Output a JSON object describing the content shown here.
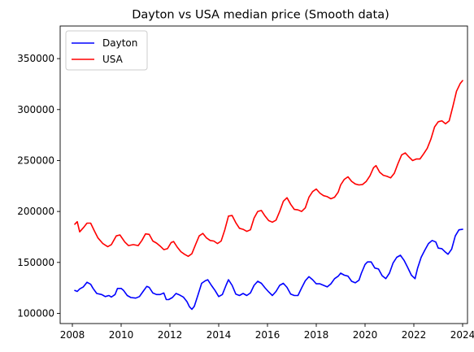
{
  "chart_data": {
    "type": "line",
    "title": "Dayton vs USA median price (Smooth data)",
    "xlabel": "",
    "ylabel": "",
    "xlim": [
      2007.5,
      2024.2
    ],
    "ylim": [
      90000,
      382000
    ],
    "x_ticks": [
      2008,
      2010,
      2012,
      2014,
      2016,
      2018,
      2020,
      2022,
      2024
    ],
    "x_tick_labels": [
      "2008",
      "2010",
      "2012",
      "2014",
      "2016",
      "2018",
      "2020",
      "2022",
      "2024"
    ],
    "y_ticks": [
      100000,
      150000,
      200000,
      250000,
      300000,
      350000
    ],
    "y_tick_labels": [
      "100000",
      "150000",
      "200000",
      "250000",
      "300000",
      "350000"
    ],
    "grid": false,
    "legend_position": "upper-left",
    "series": [
      {
        "name": "Dayton",
        "color": "#0000ff",
        "points": [
          [
            2008.1,
            122500
          ],
          [
            2008.2,
            121500
          ],
          [
            2008.3,
            124000
          ],
          [
            2008.45,
            126000
          ],
          [
            2008.6,
            130500
          ],
          [
            2008.75,
            128500
          ],
          [
            2008.85,
            124500
          ],
          [
            2009.0,
            119500
          ],
          [
            2009.2,
            118500
          ],
          [
            2009.35,
            116500
          ],
          [
            2009.5,
            117500
          ],
          [
            2009.6,
            116000
          ],
          [
            2009.75,
            118500
          ],
          [
            2009.85,
            124500
          ],
          [
            2010.0,
            124500
          ],
          [
            2010.1,
            122500
          ],
          [
            2010.25,
            117500
          ],
          [
            2010.4,
            115500
          ],
          [
            2010.6,
            115000
          ],
          [
            2010.75,
            116500
          ],
          [
            2010.9,
            121500
          ],
          [
            2011.05,
            126500
          ],
          [
            2011.15,
            125500
          ],
          [
            2011.3,
            120000
          ],
          [
            2011.45,
            118500
          ],
          [
            2011.6,
            118500
          ],
          [
            2011.75,
            120000
          ],
          [
            2011.85,
            113500
          ],
          [
            2011.95,
            113500
          ],
          [
            2012.1,
            115500
          ],
          [
            2012.25,
            119500
          ],
          [
            2012.4,
            118000
          ],
          [
            2012.55,
            116000
          ],
          [
            2012.7,
            111500
          ],
          [
            2012.8,
            106500
          ],
          [
            2012.9,
            104000
          ],
          [
            2013.0,
            107000
          ],
          [
            2013.15,
            118000
          ],
          [
            2013.3,
            129500
          ],
          [
            2013.45,
            132000
          ],
          [
            2013.55,
            133000
          ],
          [
            2013.7,
            127500
          ],
          [
            2013.85,
            122500
          ],
          [
            2014.0,
            116500
          ],
          [
            2014.15,
            118500
          ],
          [
            2014.3,
            127500
          ],
          [
            2014.4,
            133000
          ],
          [
            2014.55,
            127500
          ],
          [
            2014.7,
            119000
          ],
          [
            2014.85,
            117500
          ],
          [
            2015.0,
            119500
          ],
          [
            2015.15,
            117500
          ],
          [
            2015.3,
            120000
          ],
          [
            2015.45,
            127500
          ],
          [
            2015.6,
            131500
          ],
          [
            2015.75,
            129500
          ],
          [
            2015.9,
            125000
          ],
          [
            2016.05,
            121000
          ],
          [
            2016.2,
            117500
          ],
          [
            2016.35,
            121500
          ],
          [
            2016.5,
            127500
          ],
          [
            2016.65,
            129500
          ],
          [
            2016.8,
            125500
          ],
          [
            2016.95,
            119000
          ],
          [
            2017.1,
            117500
          ],
          [
            2017.25,
            117500
          ],
          [
            2017.4,
            125000
          ],
          [
            2017.55,
            132000
          ],
          [
            2017.7,
            136000
          ],
          [
            2017.85,
            133000
          ],
          [
            2018.0,
            129000
          ],
          [
            2018.15,
            129000
          ],
          [
            2018.3,
            127500
          ],
          [
            2018.45,
            126000
          ],
          [
            2018.6,
            129000
          ],
          [
            2018.75,
            134000
          ],
          [
            2018.9,
            136500
          ],
          [
            2019.0,
            139500
          ],
          [
            2019.15,
            137500
          ],
          [
            2019.3,
            136500
          ],
          [
            2019.45,
            131500
          ],
          [
            2019.6,
            130000
          ],
          [
            2019.75,
            132500
          ],
          [
            2019.85,
            139500
          ],
          [
            2020.0,
            148000
          ],
          [
            2020.1,
            150500
          ],
          [
            2020.25,
            150500
          ],
          [
            2020.4,
            144500
          ],
          [
            2020.55,
            143500
          ],
          [
            2020.7,
            137000
          ],
          [
            2020.85,
            134000
          ],
          [
            2021.0,
            139500
          ],
          [
            2021.15,
            149500
          ],
          [
            2021.3,
            155000
          ],
          [
            2021.45,
            157000
          ],
          [
            2021.6,
            152000
          ],
          [
            2021.75,
            145000
          ],
          [
            2021.9,
            137500
          ],
          [
            2022.05,
            134000
          ],
          [
            2022.15,
            144000
          ],
          [
            2022.3,
            155000
          ],
          [
            2022.45,
            162000
          ],
          [
            2022.6,
            168500
          ],
          [
            2022.75,
            171500
          ],
          [
            2022.9,
            170000
          ],
          [
            2023.0,
            164000
          ],
          [
            2023.15,
            163500
          ],
          [
            2023.3,
            160000
          ],
          [
            2023.4,
            158000
          ],
          [
            2023.55,
            163000
          ],
          [
            2023.7,
            176000
          ],
          [
            2023.85,
            182000
          ],
          [
            2024.0,
            182500
          ]
        ]
      },
      {
        "name": "USA",
        "color": "#ff0000",
        "points": [
          [
            2008.1,
            187500
          ],
          [
            2008.2,
            190000
          ],
          [
            2008.3,
            180000
          ],
          [
            2008.45,
            184000
          ],
          [
            2008.6,
            188500
          ],
          [
            2008.75,
            188500
          ],
          [
            2008.9,
            181000
          ],
          [
            2009.05,
            174000
          ],
          [
            2009.25,
            168500
          ],
          [
            2009.45,
            165500
          ],
          [
            2009.6,
            167500
          ],
          [
            2009.8,
            176000
          ],
          [
            2009.95,
            177000
          ],
          [
            2010.15,
            170000
          ],
          [
            2010.3,
            166500
          ],
          [
            2010.5,
            167500
          ],
          [
            2010.7,
            166500
          ],
          [
            2010.85,
            171500
          ],
          [
            2011.0,
            178000
          ],
          [
            2011.15,
            177500
          ],
          [
            2011.3,
            171000
          ],
          [
            2011.45,
            169000
          ],
          [
            2011.6,
            166000
          ],
          [
            2011.75,
            162500
          ],
          [
            2011.9,
            163500
          ],
          [
            2012.05,
            169500
          ],
          [
            2012.15,
            170500
          ],
          [
            2012.3,
            165000
          ],
          [
            2012.45,
            160500
          ],
          [
            2012.6,
            158000
          ],
          [
            2012.75,
            156000
          ],
          [
            2012.9,
            158500
          ],
          [
            2013.05,
            167500
          ],
          [
            2013.2,
            176000
          ],
          [
            2013.35,
            178500
          ],
          [
            2013.5,
            174000
          ],
          [
            2013.65,
            171500
          ],
          [
            2013.8,
            171000
          ],
          [
            2013.95,
            168500
          ],
          [
            2014.1,
            171000
          ],
          [
            2014.25,
            182000
          ],
          [
            2014.4,
            195500
          ],
          [
            2014.55,
            196000
          ],
          [
            2014.7,
            189000
          ],
          [
            2014.85,
            183500
          ],
          [
            2015.0,
            182500
          ],
          [
            2015.15,
            180500
          ],
          [
            2015.3,
            182000
          ],
          [
            2015.45,
            193500
          ],
          [
            2015.6,
            200000
          ],
          [
            2015.75,
            201000
          ],
          [
            2015.9,
            195500
          ],
          [
            2016.05,
            191000
          ],
          [
            2016.2,
            189500
          ],
          [
            2016.35,
            191500
          ],
          [
            2016.5,
            200000
          ],
          [
            2016.65,
            210000
          ],
          [
            2016.8,
            213500
          ],
          [
            2016.95,
            207000
          ],
          [
            2017.1,
            202000
          ],
          [
            2017.25,
            201500
          ],
          [
            2017.4,
            200000
          ],
          [
            2017.55,
            203500
          ],
          [
            2017.7,
            214000
          ],
          [
            2017.85,
            219500
          ],
          [
            2018.0,
            222000
          ],
          [
            2018.15,
            218000
          ],
          [
            2018.3,
            215500
          ],
          [
            2018.45,
            214500
          ],
          [
            2018.6,
            212500
          ],
          [
            2018.75,
            214000
          ],
          [
            2018.9,
            219000
          ],
          [
            2019.0,
            226000
          ],
          [
            2019.15,
            231500
          ],
          [
            2019.3,
            234000
          ],
          [
            2019.45,
            229500
          ],
          [
            2019.6,
            227000
          ],
          [
            2019.75,
            226000
          ],
          [
            2019.9,
            226500
          ],
          [
            2020.05,
            229500
          ],
          [
            2020.2,
            235000
          ],
          [
            2020.35,
            243000
          ],
          [
            2020.45,
            245000
          ],
          [
            2020.6,
            238500
          ],
          [
            2020.75,
            235500
          ],
          [
            2020.9,
            234500
          ],
          [
            2021.05,
            233000
          ],
          [
            2021.2,
            237500
          ],
          [
            2021.35,
            247000
          ],
          [
            2021.5,
            255500
          ],
          [
            2021.65,
            257500
          ],
          [
            2021.8,
            253500
          ],
          [
            2021.95,
            250000
          ],
          [
            2022.1,
            251500
          ],
          [
            2022.25,
            251500
          ],
          [
            2022.4,
            256500
          ],
          [
            2022.55,
            262000
          ],
          [
            2022.7,
            271000
          ],
          [
            2022.85,
            283000
          ],
          [
            2023.0,
            288000
          ],
          [
            2023.15,
            289000
          ],
          [
            2023.3,
            286000
          ],
          [
            2023.45,
            289000
          ],
          [
            2023.6,
            303000
          ],
          [
            2023.75,
            318000
          ],
          [
            2023.9,
            325500
          ],
          [
            2024.0,
            328500
          ]
        ]
      }
    ]
  }
}
